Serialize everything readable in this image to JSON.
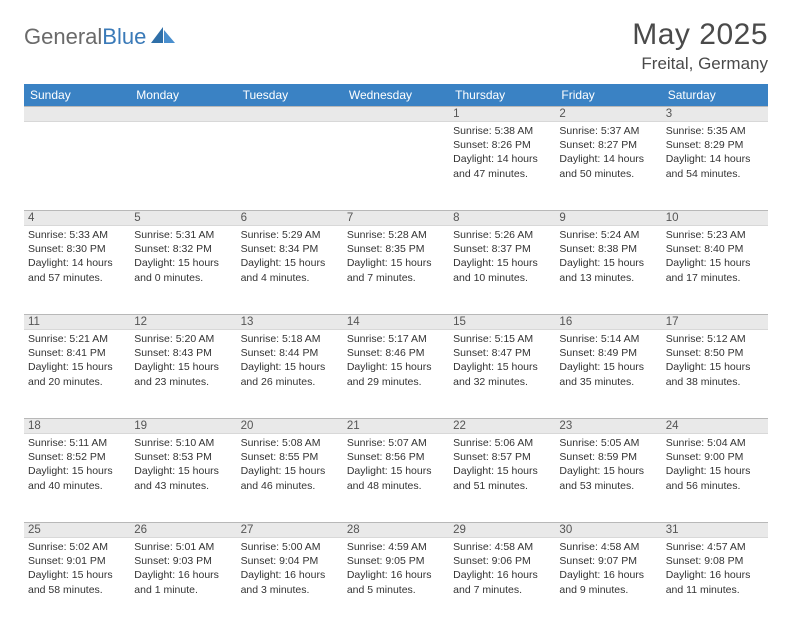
{
  "brand": {
    "part1": "General",
    "part2": "Blue"
  },
  "title": "May 2025",
  "location": "Freital, Germany",
  "colors": {
    "header_bg": "#3a82c4",
    "header_text": "#ffffff",
    "num_bg": "#e9e9e9",
    "text": "#333333",
    "brand_gray": "#6a6a6a",
    "brand_blue": "#3a7ab8"
  },
  "weekdays": [
    "Sunday",
    "Monday",
    "Tuesday",
    "Wednesday",
    "Thursday",
    "Friday",
    "Saturday"
  ],
  "weeks": [
    [
      {
        "n": "",
        "sr": "",
        "ss": "",
        "dl": ""
      },
      {
        "n": "",
        "sr": "",
        "ss": "",
        "dl": ""
      },
      {
        "n": "",
        "sr": "",
        "ss": "",
        "dl": ""
      },
      {
        "n": "",
        "sr": "",
        "ss": "",
        "dl": ""
      },
      {
        "n": "1",
        "sr": "Sunrise: 5:38 AM",
        "ss": "Sunset: 8:26 PM",
        "dl": "Daylight: 14 hours and 47 minutes."
      },
      {
        "n": "2",
        "sr": "Sunrise: 5:37 AM",
        "ss": "Sunset: 8:27 PM",
        "dl": "Daylight: 14 hours and 50 minutes."
      },
      {
        "n": "3",
        "sr": "Sunrise: 5:35 AM",
        "ss": "Sunset: 8:29 PM",
        "dl": "Daylight: 14 hours and 54 minutes."
      }
    ],
    [
      {
        "n": "4",
        "sr": "Sunrise: 5:33 AM",
        "ss": "Sunset: 8:30 PM",
        "dl": "Daylight: 14 hours and 57 minutes."
      },
      {
        "n": "5",
        "sr": "Sunrise: 5:31 AM",
        "ss": "Sunset: 8:32 PM",
        "dl": "Daylight: 15 hours and 0 minutes."
      },
      {
        "n": "6",
        "sr": "Sunrise: 5:29 AM",
        "ss": "Sunset: 8:34 PM",
        "dl": "Daylight: 15 hours and 4 minutes."
      },
      {
        "n": "7",
        "sr": "Sunrise: 5:28 AM",
        "ss": "Sunset: 8:35 PM",
        "dl": "Daylight: 15 hours and 7 minutes."
      },
      {
        "n": "8",
        "sr": "Sunrise: 5:26 AM",
        "ss": "Sunset: 8:37 PM",
        "dl": "Daylight: 15 hours and 10 minutes."
      },
      {
        "n": "9",
        "sr": "Sunrise: 5:24 AM",
        "ss": "Sunset: 8:38 PM",
        "dl": "Daylight: 15 hours and 13 minutes."
      },
      {
        "n": "10",
        "sr": "Sunrise: 5:23 AM",
        "ss": "Sunset: 8:40 PM",
        "dl": "Daylight: 15 hours and 17 minutes."
      }
    ],
    [
      {
        "n": "11",
        "sr": "Sunrise: 5:21 AM",
        "ss": "Sunset: 8:41 PM",
        "dl": "Daylight: 15 hours and 20 minutes."
      },
      {
        "n": "12",
        "sr": "Sunrise: 5:20 AM",
        "ss": "Sunset: 8:43 PM",
        "dl": "Daylight: 15 hours and 23 minutes."
      },
      {
        "n": "13",
        "sr": "Sunrise: 5:18 AM",
        "ss": "Sunset: 8:44 PM",
        "dl": "Daylight: 15 hours and 26 minutes."
      },
      {
        "n": "14",
        "sr": "Sunrise: 5:17 AM",
        "ss": "Sunset: 8:46 PM",
        "dl": "Daylight: 15 hours and 29 minutes."
      },
      {
        "n": "15",
        "sr": "Sunrise: 5:15 AM",
        "ss": "Sunset: 8:47 PM",
        "dl": "Daylight: 15 hours and 32 minutes."
      },
      {
        "n": "16",
        "sr": "Sunrise: 5:14 AM",
        "ss": "Sunset: 8:49 PM",
        "dl": "Daylight: 15 hours and 35 minutes."
      },
      {
        "n": "17",
        "sr": "Sunrise: 5:12 AM",
        "ss": "Sunset: 8:50 PM",
        "dl": "Daylight: 15 hours and 38 minutes."
      }
    ],
    [
      {
        "n": "18",
        "sr": "Sunrise: 5:11 AM",
        "ss": "Sunset: 8:52 PM",
        "dl": "Daylight: 15 hours and 40 minutes."
      },
      {
        "n": "19",
        "sr": "Sunrise: 5:10 AM",
        "ss": "Sunset: 8:53 PM",
        "dl": "Daylight: 15 hours and 43 minutes."
      },
      {
        "n": "20",
        "sr": "Sunrise: 5:08 AM",
        "ss": "Sunset: 8:55 PM",
        "dl": "Daylight: 15 hours and 46 minutes."
      },
      {
        "n": "21",
        "sr": "Sunrise: 5:07 AM",
        "ss": "Sunset: 8:56 PM",
        "dl": "Daylight: 15 hours and 48 minutes."
      },
      {
        "n": "22",
        "sr": "Sunrise: 5:06 AM",
        "ss": "Sunset: 8:57 PM",
        "dl": "Daylight: 15 hours and 51 minutes."
      },
      {
        "n": "23",
        "sr": "Sunrise: 5:05 AM",
        "ss": "Sunset: 8:59 PM",
        "dl": "Daylight: 15 hours and 53 minutes."
      },
      {
        "n": "24",
        "sr": "Sunrise: 5:04 AM",
        "ss": "Sunset: 9:00 PM",
        "dl": "Daylight: 15 hours and 56 minutes."
      }
    ],
    [
      {
        "n": "25",
        "sr": "Sunrise: 5:02 AM",
        "ss": "Sunset: 9:01 PM",
        "dl": "Daylight: 15 hours and 58 minutes."
      },
      {
        "n": "26",
        "sr": "Sunrise: 5:01 AM",
        "ss": "Sunset: 9:03 PM",
        "dl": "Daylight: 16 hours and 1 minute."
      },
      {
        "n": "27",
        "sr": "Sunrise: 5:00 AM",
        "ss": "Sunset: 9:04 PM",
        "dl": "Daylight: 16 hours and 3 minutes."
      },
      {
        "n": "28",
        "sr": "Sunrise: 4:59 AM",
        "ss": "Sunset: 9:05 PM",
        "dl": "Daylight: 16 hours and 5 minutes."
      },
      {
        "n": "29",
        "sr": "Sunrise: 4:58 AM",
        "ss": "Sunset: 9:06 PM",
        "dl": "Daylight: 16 hours and 7 minutes."
      },
      {
        "n": "30",
        "sr": "Sunrise: 4:58 AM",
        "ss": "Sunset: 9:07 PM",
        "dl": "Daylight: 16 hours and 9 minutes."
      },
      {
        "n": "31",
        "sr": "Sunrise: 4:57 AM",
        "ss": "Sunset: 9:08 PM",
        "dl": "Daylight: 16 hours and 11 minutes."
      }
    ]
  ]
}
